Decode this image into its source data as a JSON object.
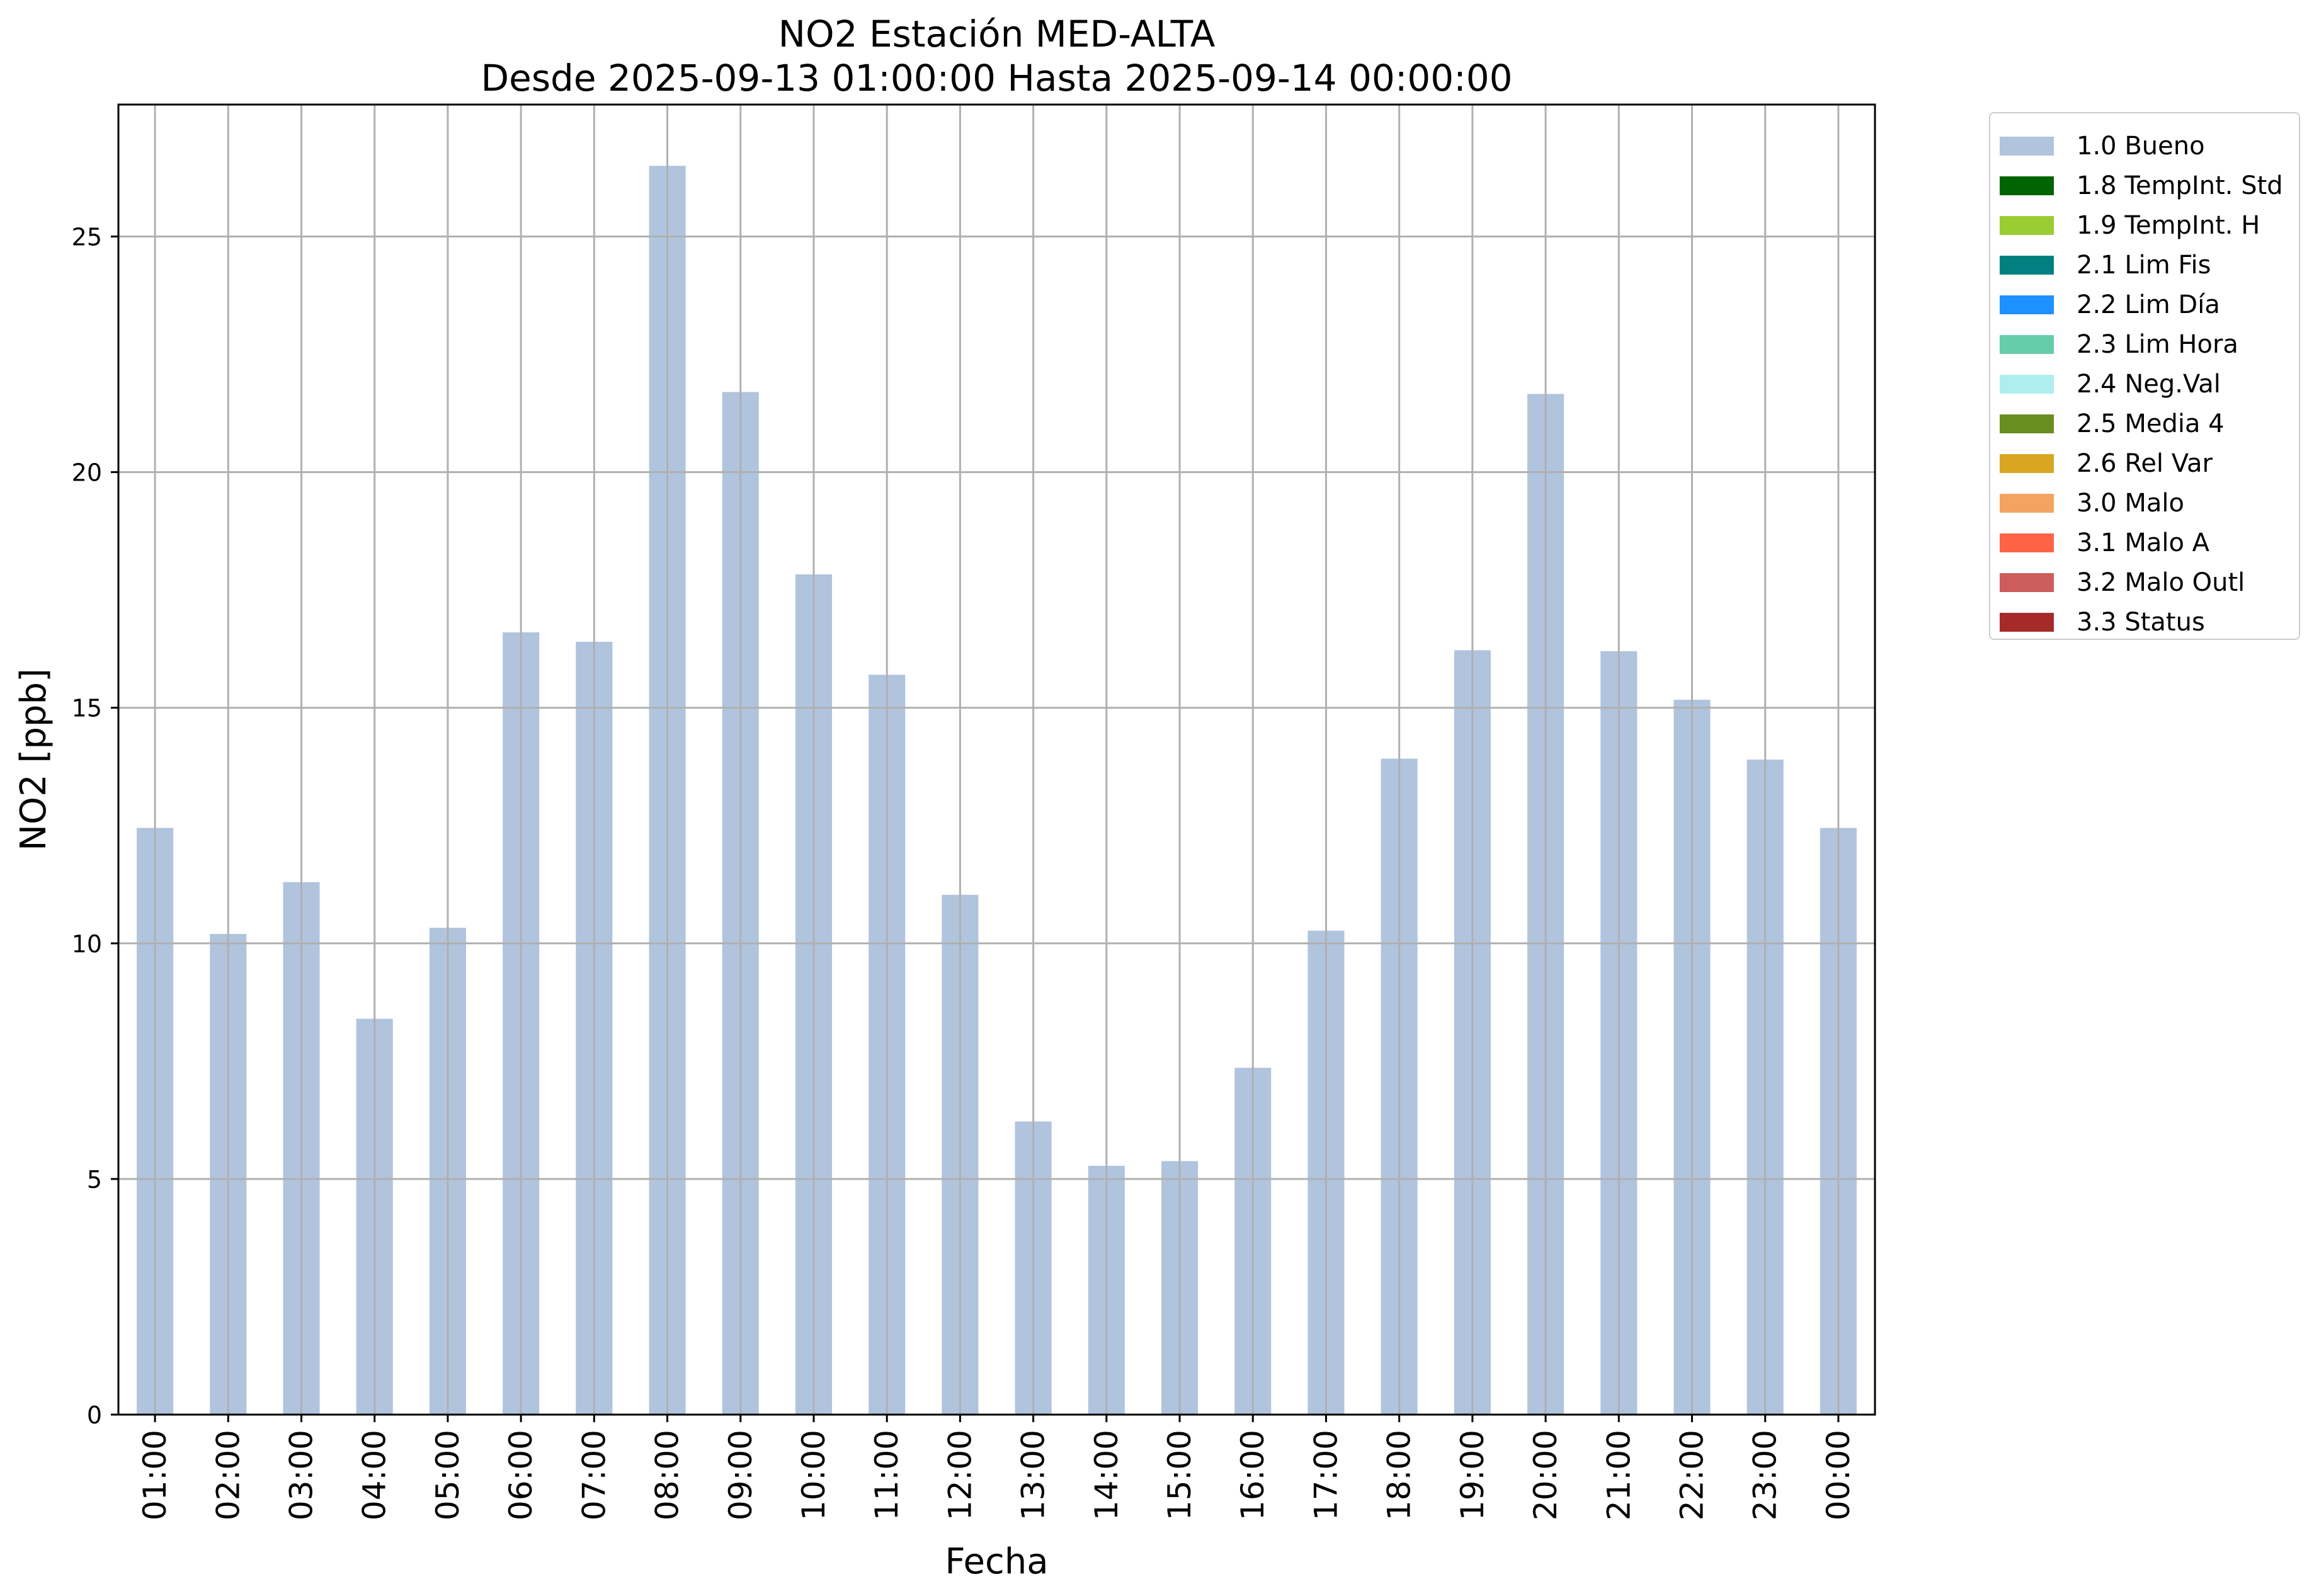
{
  "title": "NO2 Estación MED-ALTA",
  "subtitle": "Desde 2025-09-13 01:00:00 Hasta 2025-09-14 00:00:00",
  "chart_data": {
    "type": "bar",
    "title": "NO2 Estación MED-ALTA\nDesde 2025-09-13 01:00:00 Hasta 2025-09-14 00:00:00",
    "xlabel": "Fecha",
    "ylabel": "NO2 [ppb]",
    "ylim": [
      0,
      27.8
    ],
    "yticks": [
      0,
      5,
      10,
      15,
      20,
      25
    ],
    "grid": true,
    "legend_position": "outside-right-top",
    "bar_color": "#b0c4de",
    "categories": [
      "01:00",
      "02:00",
      "03:00",
      "04:00",
      "05:00",
      "06:00",
      "07:00",
      "08:00",
      "09:00",
      "10:00",
      "11:00",
      "12:00",
      "13:00",
      "14:00",
      "15:00",
      "16:00",
      "17:00",
      "18:00",
      "19:00",
      "20:00",
      "21:00",
      "22:00",
      "23:00",
      "00:00"
    ],
    "series": [
      {
        "name": "1.0 Bueno",
        "color": "#b0c4de",
        "values": [
          12.45,
          10.2,
          11.3,
          8.4,
          10.33,
          16.6,
          16.4,
          26.5,
          21.7,
          17.83,
          15.7,
          11.03,
          6.22,
          5.28,
          5.38,
          7.36,
          10.27,
          13.92,
          16.22,
          21.66,
          16.2,
          15.17,
          13.9,
          12.45
        ]
      }
    ],
    "legend": [
      {
        "label": "1.0 Bueno",
        "color": "#b0c4de"
      },
      {
        "label": "1.8 TempInt. Std",
        "color": "#006400"
      },
      {
        "label": "1.9 TempInt. H",
        "color": "#9acd32"
      },
      {
        "label": "2.1 Lim Fis",
        "color": "#008080"
      },
      {
        "label": "2.2 Lim Día",
        "color": "#1e90ff"
      },
      {
        "label": "2.3 Lim Hora",
        "color": "#66cdaa"
      },
      {
        "label": "2.4 Neg.Val",
        "color": "#afeeee"
      },
      {
        "label": "2.5 Media 4",
        "color": "#6b8e23"
      },
      {
        "label": "2.6 Rel Var",
        "color": "#daa520"
      },
      {
        "label": "3.0 Malo",
        "color": "#f4a460"
      },
      {
        "label": "3.1 Malo A",
        "color": "#ff6347"
      },
      {
        "label": "3.2 Malo Outl",
        "color": "#cd5c5c"
      },
      {
        "label": "3.3 Status",
        "color": "#a52a2a"
      }
    ]
  }
}
